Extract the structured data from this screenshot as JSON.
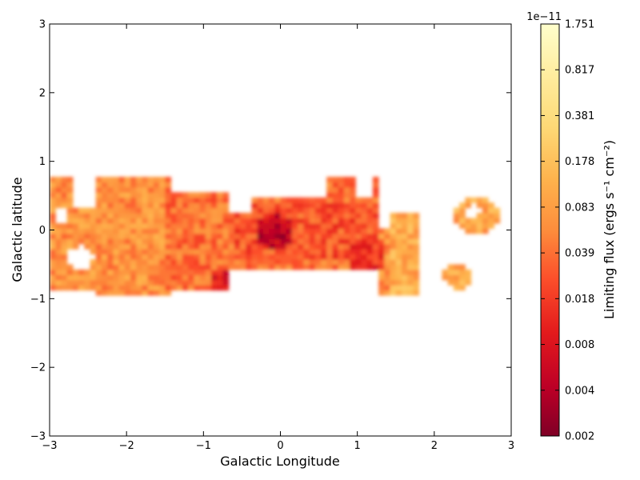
{
  "chart_data": {
    "type": "heatmap",
    "title": "",
    "xlabel": "Galactic Longitude",
    "ylabel": "Galactic latitude",
    "xlim": [
      -3,
      3
    ],
    "ylim": [
      -3,
      3
    ],
    "xticks": [
      "−3",
      "−2",
      "−1",
      "0",
      "1",
      "2",
      "3"
    ],
    "yticks": [
      "−3",
      "−2",
      "−1",
      "0",
      "1",
      "2",
      "3"
    ],
    "xtick_values": [
      -3,
      -2,
      -1,
      0,
      1,
      2,
      3
    ],
    "ytick_values": [
      -3,
      -2,
      -1,
      0,
      1,
      2,
      3
    ],
    "grid": false,
    "colormap": "YlOrRd_r",
    "colors": {
      "deep": "#800026",
      "red": "#e31a1c",
      "orange": "#fd8d3c",
      "light_orange": "#feb24c",
      "yellow": "#fed976",
      "pale": "#ffffcc"
    },
    "colorbar": {
      "label": "Limiting flux (ergs s⁻¹ cm⁻²)",
      "scale_label": "1e−11",
      "tick_labels": [
        "0.002",
        "0.004",
        "0.008",
        "0.018",
        "0.039",
        "0.083",
        "0.178",
        "0.381",
        "0.817",
        "1.751"
      ],
      "tick_values": [
        0.002,
        0.004,
        0.008,
        0.018,
        0.039,
        0.083,
        0.178,
        0.381,
        0.817,
        1.751
      ],
      "scale": "log"
    },
    "coverage_regions": [
      {
        "name": "main_band",
        "l_range": [
          -3.0,
          1.8
        ],
        "b_range": [
          -0.95,
          0.85
        ]
      },
      {
        "name": "isolated_patch_east",
        "l_range": [
          2.3,
          2.8
        ],
        "b_range": [
          -0.1,
          0.5
        ]
      },
      {
        "name": "isolated_patch_south_east",
        "l_range": [
          2.15,
          2.5
        ],
        "b_range": [
          -0.85,
          -0.5
        ]
      }
    ],
    "minimum_flux_location": {
      "l": -0.08,
      "b": -0.02,
      "value": 0.002
    }
  }
}
